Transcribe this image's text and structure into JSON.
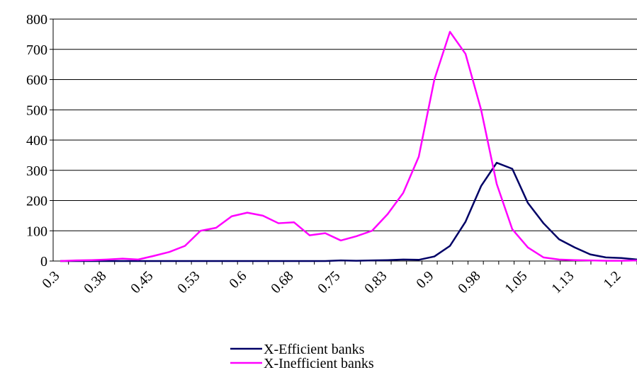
{
  "chart_data": {
    "type": "line",
    "categories": [
      "0.3",
      null,
      null,
      "0.38",
      null,
      null,
      "0.45",
      null,
      null,
      "0.53",
      null,
      null,
      "0.6",
      null,
      null,
      "0.68",
      null,
      null,
      "0.75",
      null,
      null,
      "0.83",
      null,
      null,
      "0.9",
      null,
      null,
      "0.98",
      null,
      null,
      "1.05",
      null,
      null,
      "1.13",
      null,
      null,
      "1.2",
      null
    ],
    "series": [
      {
        "name": "X-Efficient banks",
        "color": "#000066",
        "values": [
          0,
          0,
          0,
          0,
          0,
          0,
          0,
          0,
          0,
          0,
          0,
          0,
          0,
          0,
          0,
          0,
          0,
          0,
          2,
          1,
          2,
          3,
          5,
          4,
          15,
          50,
          130,
          248,
          325,
          305,
          192,
          125,
          72,
          45,
          22,
          12,
          10,
          5
        ]
      },
      {
        "name": "X-Inefficient banks",
        "color": "#ff00ff",
        "values": [
          0,
          2,
          3,
          5,
          8,
          5,
          17,
          30,
          50,
          100,
          110,
          148,
          160,
          150,
          125,
          128,
          85,
          92,
          68,
          82,
          100,
          155,
          225,
          345,
          600,
          758,
          685,
          500,
          255,
          105,
          45,
          12,
          5,
          3,
          2,
          1,
          1,
          2
        ]
      }
    ],
    "ylim": [
      0,
      800
    ],
    "yticks": [
      0,
      100,
      200,
      300,
      400,
      500,
      600,
      700,
      800
    ],
    "grid": true
  }
}
